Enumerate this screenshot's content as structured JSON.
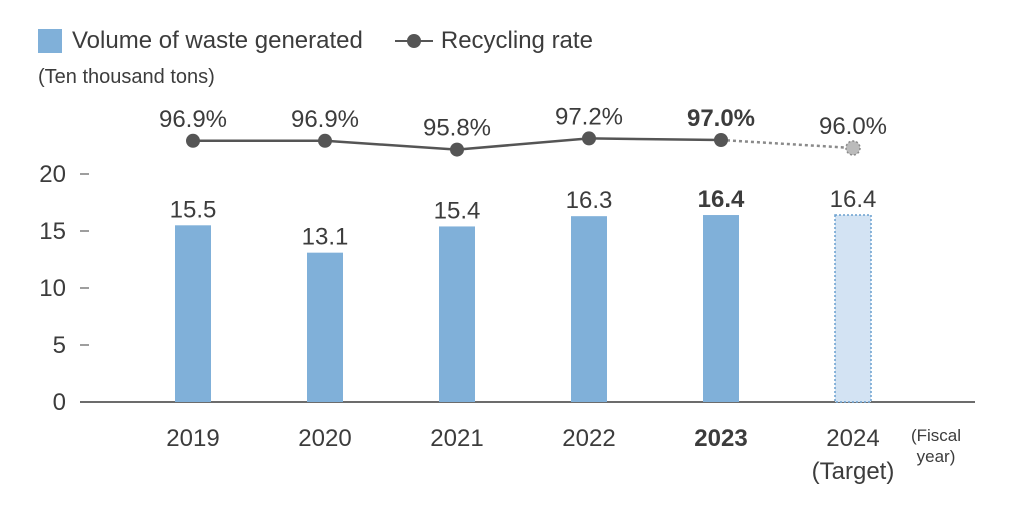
{
  "legend": {
    "bar_label": "Volume of waste generated",
    "line_label": "Recycling rate"
  },
  "unit_label": "(Ten thousand tons)",
  "xaxis_note": [
    "(Fiscal",
    "year)"
  ],
  "colors": {
    "bar": "#80b0d9",
    "bar_target": "#d3e3f3",
    "bar_target_border": "#6aa0cf",
    "line": "#555555",
    "line_target": "#8a8a8a",
    "target_marker": "#bbbbbb",
    "axis": "#3c3c3c"
  },
  "chart_data": {
    "type": "bar",
    "categories": [
      {
        "year": "2019",
        "sub": ""
      },
      {
        "year": "2020",
        "sub": ""
      },
      {
        "year": "2021",
        "sub": ""
      },
      {
        "year": "2022",
        "sub": ""
      },
      {
        "year": "2023",
        "sub": ""
      },
      {
        "year": "2024",
        "sub": "(Target)"
      }
    ],
    "highlight_index": 4,
    "target_index": 5,
    "series": [
      {
        "name": "Volume of waste generated",
        "kind": "bar",
        "values": [
          15.5,
          13.1,
          15.4,
          16.3,
          16.4,
          16.4
        ],
        "labels": [
          "15.5",
          "13.1",
          "15.4",
          "16.3",
          "16.4",
          "16.4"
        ]
      },
      {
        "name": "Recycling rate",
        "kind": "line",
        "values": [
          96.9,
          96.9,
          95.8,
          97.2,
          97.0,
          96.0
        ],
        "labels": [
          "96.9%",
          "96.9%",
          "95.8%",
          "97.2%",
          "97.0%",
          "96.0%"
        ]
      }
    ],
    "yaxis": {
      "ticks": [
        0,
        5,
        10,
        15,
        20
      ],
      "range": [
        0,
        20
      ]
    },
    "line_range": [
      95,
      98
    ],
    "grid": false
  }
}
